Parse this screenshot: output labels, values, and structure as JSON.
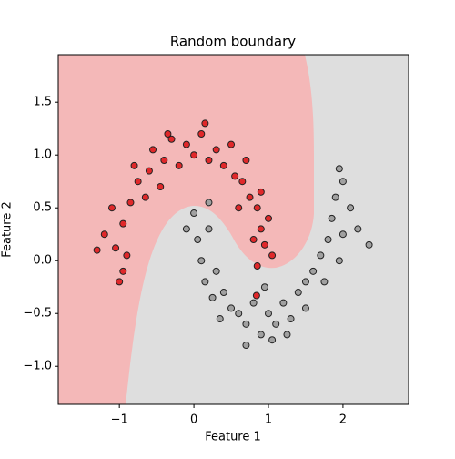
{
  "chart_data": {
    "type": "scatter",
    "title": "Random boundary",
    "x_label": "Feature 1",
    "y_label": "Feature 2",
    "xlim": [
      -1.82,
      2.88
    ],
    "ylim": [
      -1.36,
      1.95
    ],
    "xticks": [
      {
        "value": -1,
        "label": "−1"
      },
      0,
      1,
      2
    ],
    "yticks": [
      {
        "value": -1.0,
        "label": "−1.0"
      },
      {
        "value": -0.5,
        "label": "−0.5"
      },
      {
        "value": 0.0,
        "label": "0.0"
      },
      {
        "value": 0.5,
        "label": "0.5"
      },
      {
        "value": 1.0,
        "label": "1.0"
      },
      {
        "value": 1.5,
        "label": "1.5"
      }
    ],
    "series": [
      {
        "color": "#e0282a",
        "x": [
          -1.05,
          -0.95,
          -1.2,
          -0.85,
          -0.9,
          -1.1,
          -0.75,
          -0.8,
          -0.6,
          -0.55,
          -0.65,
          -0.4,
          -0.3,
          -0.2,
          -0.1,
          0.0,
          0.1,
          0.2,
          0.3,
          0.4,
          0.5,
          0.55,
          0.65,
          0.7,
          0.75,
          0.85,
          0.9,
          0.95,
          1.0,
          0.8,
          -1.3,
          -0.95,
          -1.0,
          0.6,
          0.9,
          -0.45,
          0.15,
          -0.35,
          1.05,
          0.85,
          0.84
        ],
        "values": [
          0.12,
          0.35,
          0.25,
          0.55,
          0.05,
          0.5,
          0.75,
          0.9,
          0.85,
          1.05,
          0.6,
          0.95,
          1.15,
          0.9,
          1.1,
          1.0,
          1.2,
          0.95,
          1.05,
          0.9,
          1.1,
          0.8,
          0.75,
          0.95,
          0.6,
          0.5,
          0.3,
          0.15,
          0.4,
          0.2,
          0.1,
          -0.1,
          -0.2,
          0.5,
          0.65,
          0.7,
          1.3,
          1.2,
          0.05,
          -0.05,
          -0.33
        ]
      },
      {
        "color": "#a0a0a0",
        "x": [
          0.0,
          0.05,
          -0.1,
          0.1,
          0.15,
          0.2,
          0.25,
          0.3,
          0.4,
          0.5,
          0.6,
          0.7,
          0.8,
          0.9,
          1.0,
          1.1,
          1.2,
          1.3,
          1.4,
          1.5,
          1.6,
          1.7,
          1.8,
          1.85,
          1.9,
          2.0,
          2.1,
          2.0,
          1.95,
          2.2,
          1.75,
          1.5,
          1.05,
          0.7,
          0.35,
          0.2,
          1.95,
          2.35,
          0.95,
          1.25
        ],
        "values": [
          0.45,
          0.2,
          0.3,
          0.0,
          -0.2,
          0.55,
          -0.35,
          -0.1,
          -0.3,
          -0.45,
          -0.5,
          -0.6,
          -0.4,
          -0.7,
          -0.5,
          -0.6,
          -0.4,
          -0.55,
          -0.3,
          -0.2,
          -0.1,
          0.05,
          0.2,
          0.4,
          0.6,
          0.75,
          0.5,
          0.25,
          0.0,
          0.3,
          -0.2,
          -0.45,
          -0.75,
          -0.8,
          -0.55,
          0.3,
          0.87,
          0.15,
          -0.25,
          -0.7
        ]
      }
    ]
  }
}
